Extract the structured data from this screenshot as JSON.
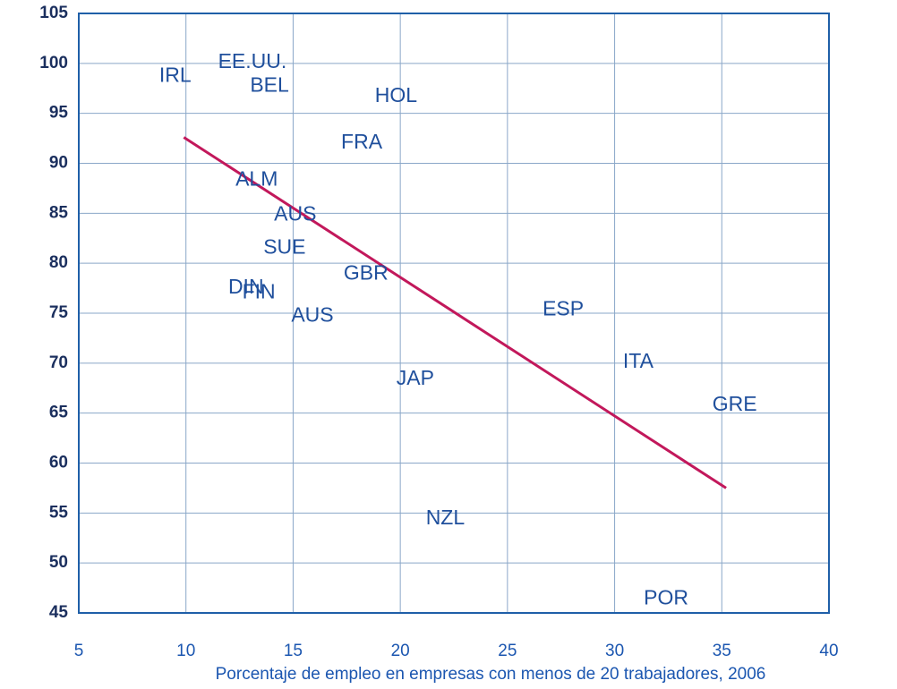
{
  "chart_data": {
    "type": "scatter",
    "xlabel": "Porcentaje de empleo en empresas con menos de 20 trabajadores, 2006",
    "labels": [
      "IRL",
      "EE.UU.",
      "BEL",
      "HOL",
      "FRA",
      "ALM",
      "AUS",
      "SUE",
      "GBR",
      "DIN",
      "FIN",
      "AUS",
      "ESP",
      "ITA",
      "GRE",
      "JAP",
      "NZL",
      "POR"
    ],
    "x": [
      9.5,
      13.1,
      13.9,
      19.8,
      18.2,
      13.3,
      15.1,
      14.6,
      18.4,
      12.8,
      13.4,
      15.9,
      27.6,
      31.1,
      35.6,
      20.7,
      22.1,
      32.4
    ],
    "values": [
      98.7,
      100.1,
      97.7,
      96.7,
      92.0,
      88.3,
      84.8,
      81.5,
      78.9,
      77.5,
      77.0,
      74.7,
      75.3,
      70.1,
      65.8,
      68.4,
      54.4,
      46.4
    ],
    "color": "#1f4f9c",
    "trend": {
      "x": [
        9.9,
        35.2
      ],
      "y": [
        92.6,
        57.5
      ],
      "color": "#c2185b"
    },
    "xlim": [
      5,
      40
    ],
    "ylim": [
      45,
      105
    ],
    "xticks": [
      5,
      10,
      15,
      20,
      25,
      30,
      35,
      40
    ],
    "yticks": [
      45,
      50,
      55,
      60,
      65,
      70,
      75,
      80,
      85,
      90,
      95,
      100,
      105
    ],
    "grid": true
  }
}
